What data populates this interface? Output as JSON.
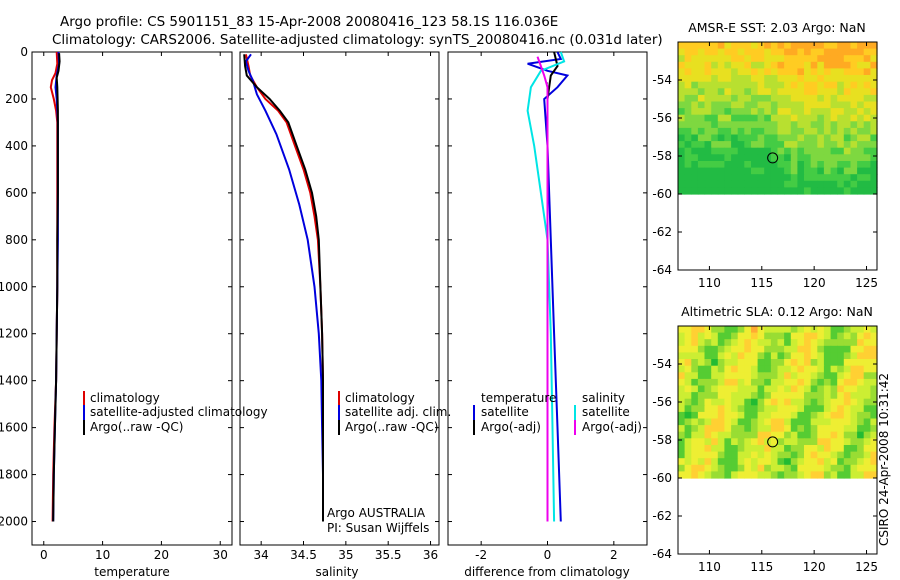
{
  "title_line1": "Argo profile: CS 5901151_83 15-Apr-2008 20080416_123 58.1S 116.036E",
  "title_line2": "Climatology: CARS2006. Satellite-adjusted climatology: synTS_20080416.nc (0.031d later)",
  "credit": "CSIRO 24-Apr-2008 10:31:42",
  "colors": {
    "climatology": "#dd0000",
    "satellite": "#0000dd",
    "argo": "#000000",
    "sat_sal": "#00e5e5",
    "argo_sal": "#ee00ee"
  },
  "chart_data": [
    {
      "type": "line",
      "name": "temperature-profile",
      "xlabel": "temperature",
      "ylabel": "",
      "xlim": [
        -2,
        32
      ],
      "ylim": [
        2100,
        0
      ],
      "xticks": [
        0,
        10,
        20,
        30
      ],
      "yticks": [
        0,
        200,
        400,
        600,
        800,
        1000,
        1200,
        1400,
        1600,
        1800,
        2000
      ],
      "legend": [
        "climatology",
        "satellite-adjusted climatology",
        "Argo(..raw -QC)"
      ],
      "series": [
        {
          "name": "climatology",
          "color": "#dd0000",
          "points": [
            [
              2.2,
              0
            ],
            [
              2.3,
              50
            ],
            [
              2.0,
              90
            ],
            [
              1.4,
              120
            ],
            [
              1.2,
              150
            ],
            [
              1.7,
              200
            ],
            [
              2.1,
              250
            ],
            [
              2.3,
              300
            ],
            [
              2.3,
              400
            ],
            [
              2.3,
              600
            ],
            [
              2.3,
              800
            ],
            [
              2.3,
              1000
            ],
            [
              2.2,
              1200
            ],
            [
              2.1,
              1400
            ],
            [
              1.8,
              1600
            ],
            [
              1.6,
              1800
            ],
            [
              1.5,
              2000
            ]
          ]
        },
        {
          "name": "satellite-adjusted climatology",
          "color": "#0000dd",
          "points": [
            [
              2.5,
              0
            ],
            [
              2.6,
              50
            ],
            [
              2.2,
              100
            ],
            [
              2.0,
              150
            ],
            [
              2.2,
              200
            ],
            [
              2.4,
              300
            ],
            [
              2.4,
              400
            ],
            [
              2.4,
              600
            ],
            [
              2.4,
              800
            ],
            [
              2.3,
              1000
            ],
            [
              2.2,
              1200
            ],
            [
              2.1,
              1400
            ],
            [
              1.9,
              1600
            ],
            [
              1.7,
              1800
            ],
            [
              1.6,
              2000
            ]
          ]
        },
        {
          "name": "Argo(..raw -QC)",
          "color": "#000000",
          "points": [
            [
              2.6,
              5
            ],
            [
              2.7,
              40
            ],
            [
              2.5,
              80
            ],
            [
              2.2,
              110
            ],
            [
              2.3,
              150
            ],
            [
              2.4,
              250
            ],
            [
              2.4,
              400
            ],
            [
              2.4,
              600
            ],
            [
              2.3,
              800
            ],
            [
              2.3,
              1000
            ],
            [
              2.2,
              1200
            ],
            [
              2.1,
              1400
            ],
            [
              1.9,
              1600
            ],
            [
              1.7,
              1800
            ],
            [
              1.6,
              2000
            ]
          ]
        }
      ]
    },
    {
      "type": "line",
      "name": "salinity-profile",
      "xlabel": "salinity",
      "xlim": [
        33.75,
        36.1
      ],
      "ylim": [
        2100,
        0
      ],
      "xticks": [
        34,
        34.5,
        35,
        35.5,
        36
      ],
      "legend": [
        "climatology",
        "satellite adj. clim.",
        "Argo(..raw -QC)"
      ],
      "annotation": [
        "Argo AUSTRALIA",
        "PI: Susan Wijffels"
      ],
      "series": [
        {
          "name": "climatology",
          "color": "#dd0000",
          "points": [
            [
              33.82,
              10
            ],
            [
              33.85,
              60
            ],
            [
              33.87,
              100
            ],
            [
              33.95,
              150
            ],
            [
              34.05,
              200
            ],
            [
              34.2,
              250
            ],
            [
              34.3,
              300
            ],
            [
              34.4,
              400
            ],
            [
              34.5,
              500
            ],
            [
              34.58,
              600
            ],
            [
              34.63,
              700
            ],
            [
              34.67,
              800
            ],
            [
              34.7,
              1000
            ],
            [
              34.72,
              1200
            ],
            [
              34.73,
              1400
            ],
            [
              34.73,
              1600
            ],
            [
              34.73,
              1800
            ],
            [
              34.73,
              2000
            ]
          ]
        },
        {
          "name": "satellite adj. clim.",
          "color": "#0000dd",
          "points": [
            [
              33.88,
              10
            ],
            [
              33.82,
              40
            ],
            [
              33.85,
              80
            ],
            [
              33.9,
              120
            ],
            [
              33.95,
              180
            ],
            [
              34.05,
              250
            ],
            [
              34.18,
              350
            ],
            [
              34.33,
              500
            ],
            [
              34.45,
              650
            ],
            [
              34.55,
              800
            ],
            [
              34.63,
              1000
            ],
            [
              34.68,
              1200
            ],
            [
              34.71,
              1400
            ],
            [
              34.72,
              1600
            ],
            [
              34.73,
              1800
            ],
            [
              34.73,
              2000
            ]
          ]
        },
        {
          "name": "Argo(..raw -QC)",
          "color": "#000000",
          "points": [
            [
              33.8,
              10
            ],
            [
              33.81,
              60
            ],
            [
              33.83,
              100
            ],
            [
              33.95,
              150
            ],
            [
              34.1,
              200
            ],
            [
              34.22,
              250
            ],
            [
              34.32,
              300
            ],
            [
              34.42,
              400
            ],
            [
              34.52,
              500
            ],
            [
              34.6,
              600
            ],
            [
              34.65,
              700
            ],
            [
              34.68,
              800
            ],
            [
              34.7,
              1000
            ],
            [
              34.72,
              1200
            ],
            [
              34.73,
              1400
            ],
            [
              34.73,
              1600
            ],
            [
              34.73,
              1800
            ],
            [
              34.73,
              2000
            ]
          ]
        }
      ]
    },
    {
      "type": "line",
      "name": "difference-profile",
      "xlabel": "difference from climatology",
      "xlim": [
        -3,
        3
      ],
      "ylim": [
        2100,
        0
      ],
      "xticks": [
        -2,
        0,
        2
      ],
      "legend_temperature_title": "temperature",
      "legend_salinity_title": "salinity",
      "legend": [
        "satellite",
        "Argo(-adj)",
        "satellite",
        "Argo(-adj)"
      ],
      "series": [
        {
          "name": "temperature satellite",
          "color": "#0000dd",
          "points": [
            [
              0.3,
              0
            ],
            [
              0.4,
              30
            ],
            [
              -0.6,
              50
            ],
            [
              0,
              80
            ],
            [
              0.6,
              100
            ],
            [
              0.3,
              150
            ],
            [
              -0.1,
              200
            ],
            [
              0,
              400
            ],
            [
              0.1,
              800
            ],
            [
              0.2,
              1200
            ],
            [
              0.3,
              1600
            ],
            [
              0.4,
              2000
            ]
          ]
        },
        {
          "name": "temperature Argo(-adj)",
          "color": "#000000",
          "points": [
            [
              0.2,
              0
            ],
            [
              0.3,
              60
            ],
            [
              0.1,
              100
            ],
            [
              0,
              200
            ],
            [
              0,
              400
            ],
            [
              0,
              800
            ],
            [
              0,
              1200
            ],
            [
              0,
              1600
            ],
            [
              0,
              2000
            ]
          ]
        },
        {
          "name": "salinity satellite",
          "color": "#00e5e5",
          "points": [
            [
              0.4,
              0
            ],
            [
              0.5,
              40
            ],
            [
              -0.2,
              80
            ],
            [
              -0.5,
              150
            ],
            [
              -0.6,
              250
            ],
            [
              -0.4,
              400
            ],
            [
              -0.2,
              600
            ],
            [
              0,
              800
            ],
            [
              0.1,
              1200
            ],
            [
              0.15,
              1600
            ],
            [
              0.2,
              2000
            ]
          ]
        },
        {
          "name": "salinity Argo(-adj)",
          "color": "#ee00ee",
          "points": [
            [
              -0.3,
              20
            ],
            [
              -0.2,
              60
            ],
            [
              -0.1,
              100
            ],
            [
              0,
              150
            ],
            [
              0,
              300
            ],
            [
              0,
              1000
            ],
            [
              0,
              2000
            ]
          ]
        }
      ]
    },
    {
      "type": "heatmap",
      "name": "amsr-sst-map",
      "title": "AMSR-E SST: 2.03 Argo: NaN",
      "xlim": [
        107,
        126
      ],
      "ylim": [
        -64,
        -52
      ],
      "xticks": [
        110,
        115,
        120,
        125
      ],
      "yticks": [
        -54,
        -56,
        -58,
        -60,
        -62,
        -64
      ],
      "marker": [
        116.036,
        -58.1
      ]
    },
    {
      "type": "heatmap",
      "name": "altimetric-sla-map",
      "title": "Altimetric SLA: 0.12 Argo: NaN",
      "xlim": [
        107,
        126
      ],
      "ylim": [
        -64,
        -52
      ],
      "xticks": [
        110,
        115,
        120,
        125
      ],
      "yticks": [
        -54,
        -56,
        -58,
        -60,
        -62,
        -64
      ],
      "marker": [
        116.036,
        -58.1
      ]
    }
  ]
}
